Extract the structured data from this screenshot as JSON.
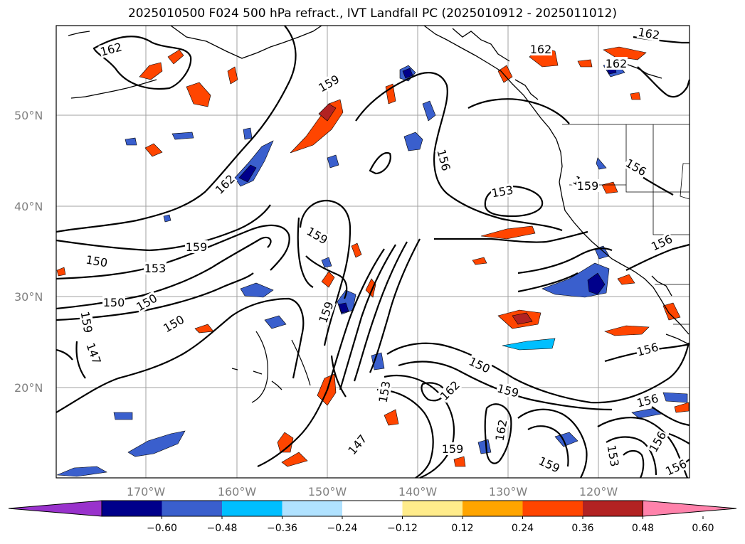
{
  "title": "2025010500 F024 500 hPa refract., IVT Landfall PC (2025010912 - 2025011012)",
  "map": {
    "lat_ticks": [
      "50°N",
      "40°N",
      "30°N",
      "20°N"
    ],
    "lon_ticks": [
      "170°W",
      "160°W",
      "150°W",
      "140°W",
      "130°W",
      "120°W"
    ],
    "contour_labels": [
      "162",
      "162",
      "162",
      "162",
      "159",
      "162",
      "156",
      "153",
      "156",
      "159",
      "159",
      "156",
      "153",
      "159",
      "150",
      "150",
      "150",
      "150",
      "147",
      "159",
      "159",
      "150",
      "162",
      "159",
      "153",
      "147",
      "159",
      "162",
      "156",
      "156",
      "153",
      "156",
      "159",
      "156",
      "159"
    ]
  },
  "colorbar": {
    "colors": [
      "#9932cc",
      "#00008b",
      "#3a5fcd",
      "#00bfff",
      "#b0e2ff",
      "#ffffff",
      "#ffec8b",
      "#ffa500",
      "#ff4500",
      "#b22222",
      "#ff82ab"
    ],
    "ticks": [
      "−0.60",
      "−0.48",
      "−0.36",
      "−0.24",
      "−0.12",
      "0.12",
      "0.24",
      "0.36",
      "0.48",
      "0.60"
    ]
  }
}
